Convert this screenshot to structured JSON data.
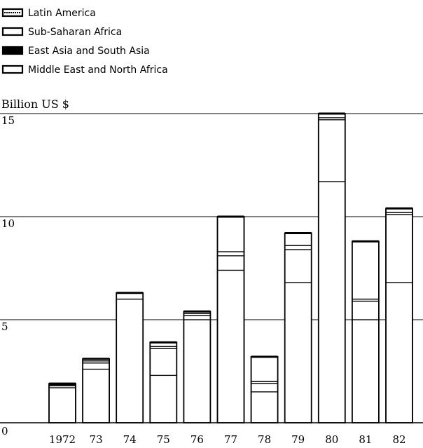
{
  "chart_data": {
    "type": "bar",
    "stacked": true,
    "ylabel": "Billion US $",
    "ylim": [
      0,
      15
    ],
    "yticks": [
      "0",
      "5",
      "10",
      "15"
    ],
    "grid": true,
    "legend_placement": "top-left",
    "categories": [
      "1972",
      "73",
      "74",
      "75",
      "76",
      "77",
      "78",
      "79",
      "80",
      "81",
      "82"
    ],
    "series": [
      {
        "name": "Latin America",
        "values": [
          1.7,
          2.6,
          6.0,
          2.3,
          5.0,
          7.4,
          1.5,
          6.8,
          11.7,
          5.0,
          6.8
        ]
      },
      {
        "name": "Sub-Saharan Africa",
        "values": [
          0.1,
          0.3,
          0.3,
          1.3,
          0.2,
          0.7,
          0.4,
          1.6,
          3.0,
          0.9,
          3.3
        ]
      },
      {
        "name": "East Asia and South Asia",
        "values": [
          0.05,
          0.1,
          0.0,
          0.1,
          0.1,
          0.2,
          0.1,
          0.2,
          0.1,
          0.1,
          0.1
        ]
      },
      {
        "name": "Middle East and North Africa",
        "values": [
          0.05,
          0.1,
          0.0,
          0.2,
          0.1,
          1.7,
          1.2,
          0.6,
          0.2,
          2.8,
          0.2
        ]
      }
    ]
  },
  "legend": [
    {
      "label": "Latin America",
      "swatch": "hatched"
    },
    {
      "label": "Sub-Saharan Africa",
      "swatch": "open"
    },
    {
      "label": "East Asia and South Asia",
      "swatch": "solid"
    },
    {
      "label": "Middle East and North Africa",
      "swatch": "open"
    }
  ],
  "colors": {
    "ink": "#000000",
    "paper": "#ffffff"
  }
}
